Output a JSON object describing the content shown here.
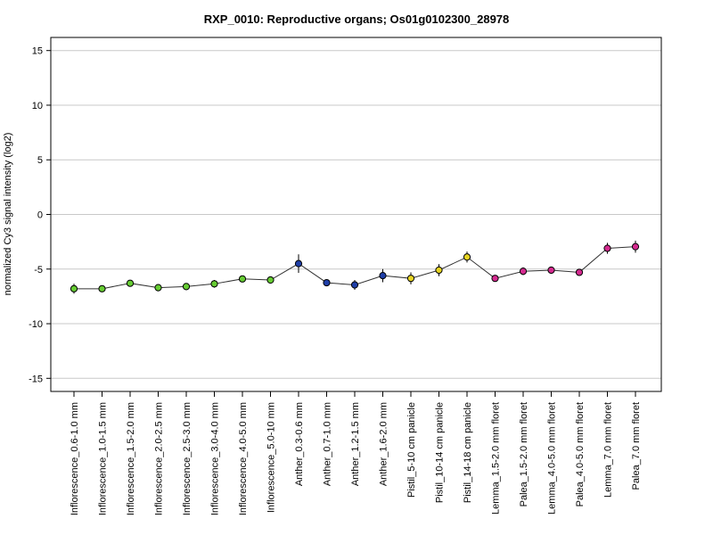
{
  "chart_data": {
    "type": "line",
    "title": "RXP_0010: Reproductive organs; Os01g0102300_28978",
    "xlabel": "",
    "ylabel": "normalized Cy3 signal intensity (log2)",
    "ylim": [
      -16.2,
      16.2
    ],
    "yticks": [
      -15,
      -10,
      -5,
      0,
      5,
      10,
      15
    ],
    "grid": true,
    "legend": "none",
    "categories": [
      "Inflorescence_0.6-1.0 mm",
      "Inflorescence_1.0-1.5 mm",
      "Inflorescence_1.5-2.0 mm",
      "Inflorescence_2.0-2.5 mm",
      "Inflorescence_2.5-3.0 mm",
      "Inflorescence_3.0-4.0 mm",
      "Inflorescence_4.0-5.0 mm",
      "Inflorescence_5.0-10 mm",
      "Anther_0.3-0.6 mm",
      "Anther_0.7-1.0 mm",
      "Anther_1.2-1.5 mm",
      "Anther_1.6-2.0 mm",
      "Pistil_5-10 cm panicle",
      "Pistil_10-14 cm panicle",
      "Pistil_14-18 cm panicle",
      "Lemma_1.5-2.0 mm floret",
      "Palea_1.5-2.0 mm floret",
      "Lemma_4.0-5.0 mm floret",
      "Palea_4.0-5.0 mm floret",
      "Lemma_7.0 mm floret",
      "Palea_7.0 mm floret"
    ],
    "series": [
      {
        "values": [
          -6.8,
          -6.8,
          -6.3,
          -6.7,
          -6.6,
          -6.35,
          -5.9,
          -6.0,
          -4.5,
          -6.25,
          -6.45,
          -5.6,
          -5.85,
          -5.1,
          -3.9,
          -5.85,
          -5.2,
          -5.1,
          -5.3,
          -3.1,
          -2.95
        ],
        "error": [
          0.45,
          0.2,
          0.2,
          0.15,
          0.15,
          0.35,
          0.15,
          0.15,
          0.85,
          0.25,
          0.45,
          0.6,
          0.55,
          0.55,
          0.5,
          0.2,
          0.35,
          0.2,
          0.15,
          0.5,
          0.55
        ],
        "colors": [
          "#66cc33",
          "#66cc33",
          "#66cc33",
          "#66cc33",
          "#66cc33",
          "#66cc33",
          "#66cc33",
          "#66cc33",
          "#1f3fa8",
          "#1f3fa8",
          "#1f3fa8",
          "#1f3fa8",
          "#e6d422",
          "#e6d422",
          "#e6d422",
          "#d42a8f",
          "#d42a8f",
          "#d42a8f",
          "#d42a8f",
          "#d42a8f",
          "#d42a8f"
        ]
      }
    ],
    "line_color": "#333333",
    "grid_color": "#c8c8c8"
  }
}
